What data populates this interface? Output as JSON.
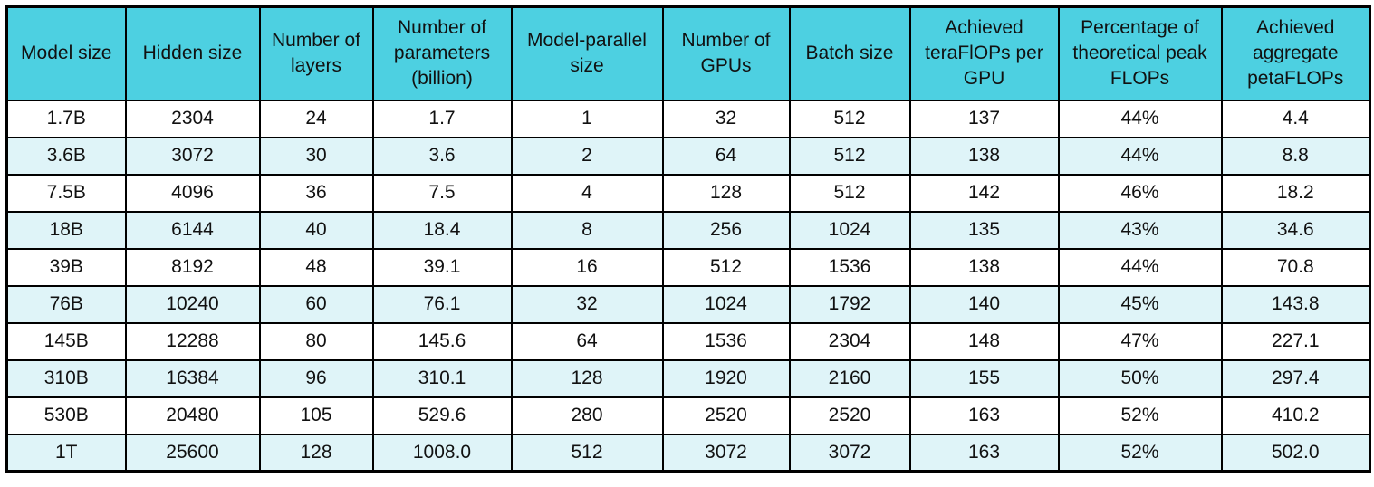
{
  "colors": {
    "header_bg": "#4dd0e1",
    "row_alt_bg": "#dff4f8",
    "row_bg": "#ffffff",
    "border": "#000000",
    "text": "#111111"
  },
  "chart_data": {
    "type": "table",
    "columns": [
      "Model size",
      "Hidden size",
      "Number of layers",
      "Number of parameters (billion)",
      "Model-parallel size",
      "Number of GPUs",
      "Batch size",
      "Achieved teraFlOPs per GPU",
      "Percentage of theoretical peak FLOPs",
      "Achieved aggregate petaFLOPs"
    ],
    "rows": [
      [
        "1.7B",
        "2304",
        "24",
        "1.7",
        "1",
        "32",
        "512",
        "137",
        "44%",
        "4.4"
      ],
      [
        "3.6B",
        "3072",
        "30",
        "3.6",
        "2",
        "64",
        "512",
        "138",
        "44%",
        "8.8"
      ],
      [
        "7.5B",
        "4096",
        "36",
        "7.5",
        "4",
        "128",
        "512",
        "142",
        "46%",
        "18.2"
      ],
      [
        "18B",
        "6144",
        "40",
        "18.4",
        "8",
        "256",
        "1024",
        "135",
        "43%",
        "34.6"
      ],
      [
        "39B",
        "8192",
        "48",
        "39.1",
        "16",
        "512",
        "1536",
        "138",
        "44%",
        "70.8"
      ],
      [
        "76B",
        "10240",
        "60",
        "76.1",
        "32",
        "1024",
        "1792",
        "140",
        "45%",
        "143.8"
      ],
      [
        "145B",
        "12288",
        "80",
        "145.6",
        "64",
        "1536",
        "2304",
        "148",
        "47%",
        "227.1"
      ],
      [
        "310B",
        "16384",
        "96",
        "310.1",
        "128",
        "1920",
        "2160",
        "155",
        "50%",
        "297.4"
      ],
      [
        "530B",
        "20480",
        "105",
        "529.6",
        "280",
        "2520",
        "2520",
        "163",
        "52%",
        "410.2"
      ],
      [
        "1T",
        "25600",
        "128",
        "1008.0",
        "512",
        "3072",
        "3072",
        "163",
        "52%",
        "502.0"
      ]
    ]
  }
}
